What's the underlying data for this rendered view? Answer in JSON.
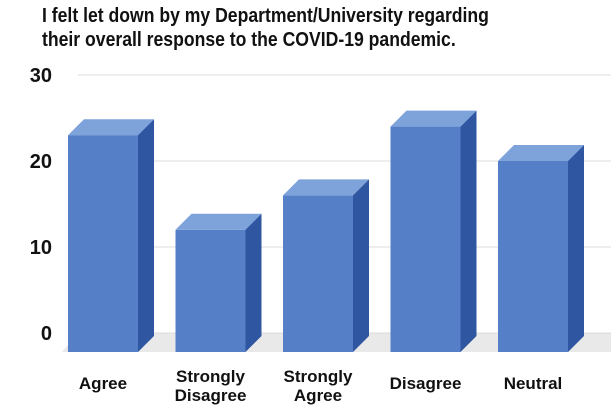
{
  "chart_data": {
    "type": "bar",
    "style": "3d-column",
    "title_lines": [
      "I felt let down by my Department/University regarding",
      "their overall response to the COVID-19 pandemic."
    ],
    "categories": [
      [
        "Agree"
      ],
      [
        "Strongly",
        "Disagree"
      ],
      [
        "Strongly",
        "Agree"
      ],
      [
        "Disagree"
      ],
      [
        "Neutral"
      ]
    ],
    "values": [
      23,
      12,
      16,
      24,
      20
    ],
    "yticks": [
      0,
      10,
      20,
      30
    ],
    "ylim": [
      0,
      30
    ],
    "grid": true,
    "legend": "none",
    "colors": {
      "front": "#5580c8",
      "top": "#7ea2da",
      "side": "#2f56a0",
      "grid": "#dcdcdc",
      "floor": "#e9e9e9"
    }
  }
}
